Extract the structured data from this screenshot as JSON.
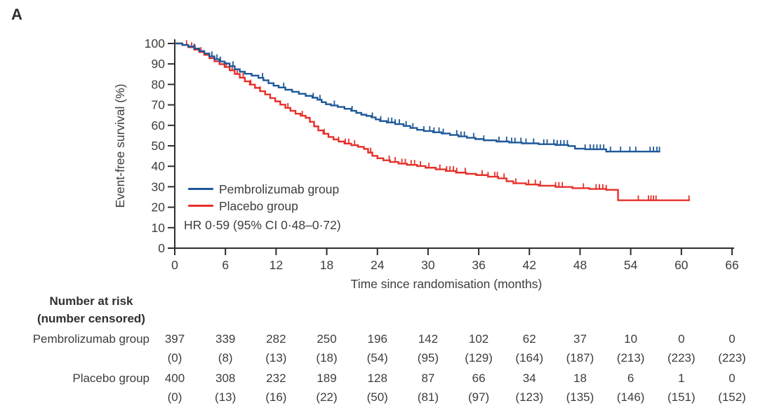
{
  "panel_label": "A",
  "colors": {
    "pembrolizumab": "#1e5898",
    "placebo": "#e63029",
    "axis": "#2e2e2e",
    "text": "#3d3d3d"
  },
  "chart_data": {
    "type": "line",
    "subtype": "kaplan-meier-step",
    "xlabel": "Time since randomisation (months)",
    "ylabel": "Event-free survival (%)",
    "xlim": [
      0,
      66
    ],
    "ylim": [
      0,
      100
    ],
    "xticks": [
      0,
      6,
      12,
      18,
      24,
      30,
      36,
      42,
      48,
      54,
      60,
      66
    ],
    "yticks": [
      0,
      10,
      20,
      30,
      40,
      50,
      60,
      70,
      80,
      90,
      100
    ],
    "grid": false,
    "legend_position": "inside-lower-left",
    "annotation": "HR 0·59 (95% CI 0·48–0·72)",
    "legend": [
      {
        "name": "Pembrolizumab group",
        "color": "#1e5898"
      },
      {
        "name": "Placebo group",
        "color": "#e63029"
      }
    ],
    "series": [
      {
        "name": "Pembrolizumab group",
        "color": "#1e5898",
        "end_month": 57.5,
        "points": [
          [
            0,
            100
          ],
          [
            0.9,
            99.3
          ],
          [
            1.6,
            98.5
          ],
          [
            2.3,
            97.5
          ],
          [
            2.9,
            96.3
          ],
          [
            3.5,
            95.1
          ],
          [
            4.1,
            93.7
          ],
          [
            4.7,
            92.3
          ],
          [
            5.3,
            91.2
          ],
          [
            5.9,
            90.2
          ],
          [
            6.5,
            88.9
          ],
          [
            7.1,
            87.4
          ],
          [
            7.7,
            86.2
          ],
          [
            8.3,
            85.2
          ],
          [
            9.1,
            84.3
          ],
          [
            9.9,
            83.2
          ],
          [
            10.5,
            82.0
          ],
          [
            11.1,
            80.6
          ],
          [
            11.7,
            79.4
          ],
          [
            12.3,
            78.5
          ],
          [
            13.1,
            77.4
          ],
          [
            13.9,
            76.4
          ],
          [
            14.7,
            75.4
          ],
          [
            15.5,
            74.4
          ],
          [
            16.3,
            73.5
          ],
          [
            16.9,
            72.5
          ],
          [
            17.4,
            71.3
          ],
          [
            17.9,
            70.3
          ],
          [
            18.5,
            69.7
          ],
          [
            19.3,
            69.0
          ],
          [
            20.1,
            68.1
          ],
          [
            20.9,
            67.1
          ],
          [
            21.5,
            66.1
          ],
          [
            22.1,
            65.2
          ],
          [
            22.7,
            64.6
          ],
          [
            23.3,
            63.9
          ],
          [
            23.8,
            62.9
          ],
          [
            24.3,
            62.1
          ],
          [
            25.1,
            61.4
          ],
          [
            26.1,
            60.6
          ],
          [
            27.1,
            59.7
          ],
          [
            27.9,
            58.7
          ],
          [
            28.7,
            57.8
          ],
          [
            29.5,
            57.2
          ],
          [
            30.6,
            56.6
          ],
          [
            31.6,
            56.0
          ],
          [
            32.6,
            55.3
          ],
          [
            33.6,
            54.6
          ],
          [
            34.6,
            53.9
          ],
          [
            35.6,
            53.3
          ],
          [
            36.6,
            52.7
          ],
          [
            38.1,
            52.1
          ],
          [
            39.6,
            51.6
          ],
          [
            41.1,
            51.2
          ],
          [
            43.1,
            50.8
          ],
          [
            45.1,
            50.4
          ],
          [
            46.6,
            49.9
          ],
          [
            47.4,
            48.6
          ],
          [
            48.6,
            48.3
          ],
          [
            51.1,
            47.2
          ]
        ],
        "censor_months": [
          2.3,
          4.4,
          5.0,
          5.4,
          6.9,
          10.4,
          12.9,
          16.4,
          17.2,
          18.9,
          21.0,
          23.4,
          24.4,
          25.3,
          25.7,
          26.1,
          26.6,
          27.4,
          28.2,
          29.5,
          30.2,
          30.7,
          31.3,
          31.8,
          33.4,
          33.9,
          34.3,
          35.4,
          36.6,
          38.4,
          39.3,
          39.9,
          40.3,
          41.0,
          41.6,
          42.5,
          43.7,
          44.1,
          44.9,
          45.3,
          45.7,
          46.1,
          46.5,
          48.6,
          49.2,
          49.6,
          50.0,
          50.4,
          50.8,
          51.6,
          52.8,
          53.9,
          54.6,
          56.3,
          56.7,
          57.1,
          57.4
        ]
      },
      {
        "name": "Placebo group",
        "color": "#e63029",
        "end_month": 61.0,
        "points": [
          [
            0,
            100
          ],
          [
            0.9,
            99.2
          ],
          [
            1.6,
            98.2
          ],
          [
            2.3,
            97.0
          ],
          [
            2.9,
            95.8
          ],
          [
            3.5,
            94.4
          ],
          [
            4.1,
            92.8
          ],
          [
            4.7,
            91.3
          ],
          [
            5.3,
            89.9
          ],
          [
            5.9,
            88.5
          ],
          [
            6.5,
            86.9
          ],
          [
            7.1,
            85.1
          ],
          [
            7.7,
            83.3
          ],
          [
            8.3,
            81.5
          ],
          [
            8.9,
            79.9
          ],
          [
            9.5,
            78.3
          ],
          [
            10.1,
            76.7
          ],
          [
            10.7,
            75.1
          ],
          [
            11.3,
            73.3
          ],
          [
            11.9,
            71.7
          ],
          [
            12.5,
            70.1
          ],
          [
            13.1,
            68.5
          ],
          [
            13.7,
            67.1
          ],
          [
            14.3,
            65.7
          ],
          [
            14.9,
            64.7
          ],
          [
            15.5,
            63.7
          ],
          [
            16.0,
            61.7
          ],
          [
            16.5,
            59.5
          ],
          [
            17.0,
            57.5
          ],
          [
            17.6,
            55.9
          ],
          [
            18.2,
            54.3
          ],
          [
            18.8,
            53.1
          ],
          [
            19.4,
            52.1
          ],
          [
            20.1,
            51.1
          ],
          [
            20.9,
            50.3
          ],
          [
            21.7,
            49.5
          ],
          [
            22.4,
            48.5
          ],
          [
            22.9,
            46.7
          ],
          [
            23.4,
            45.1
          ],
          [
            24.0,
            43.9
          ],
          [
            24.7,
            42.9
          ],
          [
            25.5,
            42.1
          ],
          [
            26.5,
            41.3
          ],
          [
            27.5,
            40.7
          ],
          [
            28.7,
            40.1
          ],
          [
            29.7,
            39.3
          ],
          [
            30.9,
            38.5
          ],
          [
            32.1,
            37.7
          ],
          [
            33.3,
            36.9
          ],
          [
            34.5,
            36.3
          ],
          [
            35.7,
            35.7
          ],
          [
            37.1,
            34.9
          ],
          [
            38.3,
            34.1
          ],
          [
            39.3,
            32.7
          ],
          [
            40.1,
            31.7
          ],
          [
            41.6,
            31.1
          ],
          [
            43.1,
            30.5
          ],
          [
            45.1,
            29.9
          ],
          [
            47.1,
            29.3
          ],
          [
            49.1,
            28.9
          ],
          [
            51.1,
            28.5
          ],
          [
            52.5,
            23.4
          ]
        ],
        "censor_months": [
          1.4,
          2.0,
          2.4,
          3.1,
          6.1,
          6.8,
          7.4,
          8.1,
          9.0,
          10.1,
          13.4,
          15.1,
          17.7,
          19.4,
          20.2,
          20.6,
          21.3,
          23.2,
          25.4,
          26.1,
          26.9,
          27.3,
          28.0,
          28.4,
          29.1,
          30.1,
          31.4,
          32.2,
          32.6,
          33.0,
          33.4,
          34.4,
          36.4,
          37.1,
          37.9,
          38.2,
          39.0,
          40.4,
          41.9,
          42.7,
          43.3,
          45.1,
          45.5,
          45.9,
          48.4,
          49.9,
          50.3,
          50.7,
          51.1,
          54.9,
          56.1,
          56.4,
          56.7,
          57.0,
          60.9
        ]
      }
    ]
  },
  "risk_table": {
    "header_line1": "Number at risk",
    "header_line2": "(number censored)",
    "time_points": [
      0,
      6,
      12,
      18,
      24,
      30,
      36,
      42,
      48,
      54,
      60,
      66
    ],
    "rows": [
      {
        "label": "Pembrolizumab group",
        "at_risk": [
          "397",
          "339",
          "282",
          "250",
          "196",
          "142",
          "102",
          "62",
          "37",
          "10",
          "0",
          "0"
        ],
        "censored": [
          "(0)",
          "(8)",
          "(13)",
          "(18)",
          "(54)",
          "(95)",
          "(129)",
          "(164)",
          "(187)",
          "(213)",
          "(223)",
          "(223)"
        ]
      },
      {
        "label": "Placebo group",
        "at_risk": [
          "400",
          "308",
          "232",
          "189",
          "128",
          "87",
          "66",
          "34",
          "18",
          "6",
          "1",
          "0"
        ],
        "censored": [
          "(0)",
          "(13)",
          "(16)",
          "(22)",
          "(50)",
          "(81)",
          "(97)",
          "(123)",
          "(135)",
          "(146)",
          "(151)",
          "(152)"
        ]
      }
    ]
  }
}
